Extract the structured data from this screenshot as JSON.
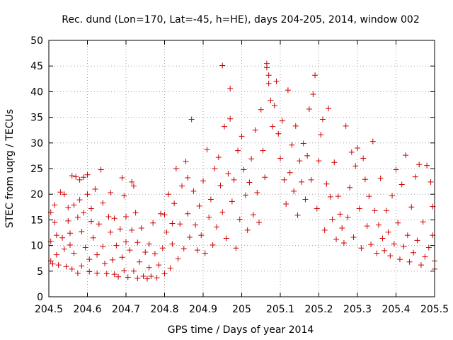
{
  "chart_data": {
    "type": "scatter",
    "title": "Rec. dund (Lon=170, Lat=-45, h=HE), days 204-205, 2014, window 002",
    "xlabel": "GPS time / Days of year 2014",
    "ylabel": "STEC from uqrg / TECUs",
    "xlim": [
      204.5,
      205.5
    ],
    "ylim": [
      0,
      50
    ],
    "xticks": [
      {
        "value": 204.5,
        "label": "204.5"
      },
      {
        "value": 204.6,
        "label": "204.6"
      },
      {
        "value": 204.7,
        "label": "204.7"
      },
      {
        "value": 204.8,
        "label": "204.8"
      },
      {
        "value": 204.9,
        "label": "204.9"
      },
      {
        "value": 205.0,
        "label": "205"
      },
      {
        "value": 205.1,
        "label": "205.1"
      },
      {
        "value": 205.2,
        "label": "205.2"
      },
      {
        "value": 205.3,
        "label": "205.3"
      },
      {
        "value": 205.4,
        "label": "205.4"
      },
      {
        "value": 205.5,
        "label": "205.5"
      }
    ],
    "yticks": [
      {
        "value": 0,
        "label": "0"
      },
      {
        "value": 5,
        "label": "5"
      },
      {
        "value": 10,
        "label": "10"
      },
      {
        "value": 15,
        "label": "15"
      },
      {
        "value": 20,
        "label": "20"
      },
      {
        "value": 25,
        "label": "25"
      },
      {
        "value": 30,
        "label": "30"
      },
      {
        "value": 35,
        "label": "35"
      },
      {
        "value": 40,
        "label": "40"
      },
      {
        "value": 45,
        "label": "45"
      },
      {
        "value": 50,
        "label": "50"
      }
    ],
    "grid": true,
    "marker": "+",
    "color": "#cc0000",
    "series": [
      {
        "name": "STEC",
        "points": [
          [
            204.505,
            16.5
          ],
          [
            204.505,
            10.8
          ],
          [
            204.505,
            7.0
          ],
          [
            204.51,
            6.4
          ],
          [
            204.515,
            17.9
          ],
          [
            204.515,
            14.5
          ],
          [
            204.52,
            12.0
          ],
          [
            204.52,
            8.2
          ],
          [
            204.525,
            6.2
          ],
          [
            204.53,
            20.4
          ],
          [
            204.535,
            11.5
          ],
          [
            204.54,
            20.0
          ],
          [
            204.54,
            9.3
          ],
          [
            204.545,
            5.9
          ],
          [
            204.55,
            17.4
          ],
          [
            204.55,
            14.8
          ],
          [
            204.555,
            12.4
          ],
          [
            204.555,
            10.1
          ],
          [
            204.56,
            23.6
          ],
          [
            204.56,
            5.4
          ],
          [
            204.565,
            17.9
          ],
          [
            204.565,
            8.5
          ],
          [
            204.57,
            23.4
          ],
          [
            204.575,
            15.5
          ],
          [
            204.575,
            4.6
          ],
          [
            204.58,
            22.8
          ],
          [
            204.58,
            18.9
          ],
          [
            204.585,
            12.7
          ],
          [
            204.585,
            6.0
          ],
          [
            204.59,
            23.3
          ],
          [
            204.59,
            16.4
          ],
          [
            204.595,
            9.6
          ],
          [
            204.6,
            23.8
          ],
          [
            204.6,
            20.0
          ],
          [
            204.605,
            7.3
          ],
          [
            204.605,
            4.9
          ],
          [
            204.61,
            17.2
          ],
          [
            204.61,
            14.7
          ],
          [
            204.615,
            11.5
          ],
          [
            204.62,
            21.0
          ],
          [
            204.625,
            8.2
          ],
          [
            204.625,
            4.6
          ],
          [
            204.63,
            14.2
          ],
          [
            204.635,
            24.8
          ],
          [
            204.64,
            18.3
          ],
          [
            204.64,
            9.8
          ],
          [
            204.645,
            6.5
          ],
          [
            204.65,
            4.5
          ],
          [
            204.655,
            15.6
          ],
          [
            204.66,
            12.6
          ],
          [
            204.66,
            20.3
          ],
          [
            204.665,
            7.2
          ],
          [
            204.67,
            15.3
          ],
          [
            204.67,
            4.4
          ],
          [
            204.675,
            10.0
          ],
          [
            204.68,
            3.9
          ],
          [
            204.685,
            13.2
          ],
          [
            204.69,
            23.2
          ],
          [
            204.69,
            7.7
          ],
          [
            204.695,
            19.7
          ],
          [
            204.695,
            5.1
          ],
          [
            204.7,
            15.6
          ],
          [
            204.7,
            10.7
          ],
          [
            204.705,
            3.8
          ],
          [
            204.71,
            9.1
          ],
          [
            204.715,
            22.4
          ],
          [
            204.715,
            13.0
          ],
          [
            204.72,
            21.6
          ],
          [
            204.72,
            5.0
          ],
          [
            204.725,
            16.4
          ],
          [
            204.73,
            3.6
          ],
          [
            204.73,
            10.6
          ],
          [
            204.735,
            6.8
          ],
          [
            204.74,
            13.4
          ],
          [
            204.745,
            4.0
          ],
          [
            204.75,
            8.7
          ],
          [
            204.755,
            3.5
          ],
          [
            204.76,
            10.3
          ],
          [
            204.76,
            5.7
          ],
          [
            204.765,
            4.0
          ],
          [
            204.77,
            14.4
          ],
          [
            204.775,
            8.4
          ],
          [
            204.78,
            3.7
          ],
          [
            204.785,
            6.2
          ],
          [
            204.79,
            16.2
          ],
          [
            204.795,
            9.5
          ],
          [
            204.8,
            4.5
          ],
          [
            204.8,
            16.0
          ],
          [
            204.805,
            12.6
          ],
          [
            204.81,
            20.0
          ],
          [
            204.815,
            5.6
          ],
          [
            204.82,
            14.3
          ],
          [
            204.82,
            10.3
          ],
          [
            204.825,
            18.2
          ],
          [
            204.83,
            25.0
          ],
          [
            204.835,
            7.4
          ],
          [
            204.84,
            14.2
          ],
          [
            204.845,
            21.6
          ],
          [
            204.85,
            9.4
          ],
          [
            204.855,
            26.4
          ],
          [
            204.86,
            16.2
          ],
          [
            204.86,
            23.2
          ],
          [
            204.865,
            11.6
          ],
          [
            204.87,
            34.6
          ],
          [
            204.875,
            20.6
          ],
          [
            204.88,
            14.0
          ],
          [
            204.885,
            9.1
          ],
          [
            204.89,
            17.7
          ],
          [
            204.895,
            12.0
          ],
          [
            204.9,
            22.6
          ],
          [
            204.905,
            8.5
          ],
          [
            204.91,
            28.7
          ],
          [
            204.915,
            15.5
          ],
          [
            204.92,
            19.0
          ],
          [
            204.925,
            10.1
          ],
          [
            204.93,
            25.0
          ],
          [
            204.935,
            13.6
          ],
          [
            204.94,
            27.2
          ],
          [
            204.945,
            21.7
          ],
          [
            204.95,
            45.1
          ],
          [
            204.95,
            16.5
          ],
          [
            204.955,
            33.2
          ],
          [
            204.96,
            11.4
          ],
          [
            204.965,
            24.0
          ],
          [
            204.97,
            40.6
          ],
          [
            204.97,
            34.7
          ],
          [
            204.975,
            18.6
          ],
          [
            204.98,
            22.8
          ],
          [
            204.985,
            9.5
          ],
          [
            204.99,
            28.5
          ],
          [
            204.995,
            15.1
          ],
          [
            205.0,
            31.3
          ],
          [
            205.005,
            24.8
          ],
          [
            205.01,
            19.8
          ],
          [
            205.015,
            13.0
          ],
          [
            205.02,
            22.3
          ],
          [
            205.025,
            26.9
          ],
          [
            205.03,
            16.0
          ],
          [
            205.035,
            32.5
          ],
          [
            205.04,
            20.3
          ],
          [
            205.045,
            14.5
          ],
          [
            205.05,
            36.5
          ],
          [
            205.055,
            28.5
          ],
          [
            205.06,
            23.3
          ],
          [
            205.065,
            45.5
          ],
          [
            205.065,
            44.7
          ],
          [
            205.07,
            43.2
          ],
          [
            205.07,
            41.6
          ],
          [
            205.075,
            38.3
          ],
          [
            205.08,
            33.2
          ],
          [
            205.085,
            37.3
          ],
          [
            205.09,
            42.0
          ],
          [
            205.095,
            31.8
          ],
          [
            205.1,
            27.0
          ],
          [
            205.105,
            34.3
          ],
          [
            205.11,
            22.8
          ],
          [
            205.115,
            18.1
          ],
          [
            205.12,
            40.3
          ],
          [
            205.125,
            24.2
          ],
          [
            205.13,
            29.6
          ],
          [
            205.135,
            20.6
          ],
          [
            205.14,
            33.3
          ],
          [
            205.145,
            15.9
          ],
          [
            205.15,
            26.5
          ],
          [
            205.155,
            22.4
          ],
          [
            205.16,
            29.9
          ],
          [
            205.165,
            19.0
          ],
          [
            205.17,
            27.5
          ],
          [
            205.175,
            36.6
          ],
          [
            205.18,
            22.8
          ],
          [
            205.185,
            39.5
          ],
          [
            205.19,
            43.2
          ],
          [
            205.195,
            17.2
          ],
          [
            205.2,
            26.5
          ],
          [
            205.205,
            31.6
          ],
          [
            205.21,
            34.6
          ],
          [
            205.215,
            13.0
          ],
          [
            205.22,
            22.0
          ],
          [
            205.225,
            36.7
          ],
          [
            205.23,
            19.5
          ],
          [
            205.235,
            15.1
          ],
          [
            205.24,
            26.2
          ],
          [
            205.245,
            11.2
          ],
          [
            205.25,
            19.6
          ],
          [
            205.255,
            16.1
          ],
          [
            205.26,
            13.4
          ],
          [
            205.265,
            10.5
          ],
          [
            205.27,
            33.3
          ],
          [
            205.275,
            15.5
          ],
          [
            205.28,
            21.3
          ],
          [
            205.285,
            28.2
          ],
          [
            205.29,
            11.6
          ],
          [
            205.295,
            25.5
          ],
          [
            205.3,
            29.0
          ],
          [
            205.305,
            17.2
          ],
          [
            205.31,
            9.5
          ],
          [
            205.315,
            27.0
          ],
          [
            205.32,
            22.9
          ],
          [
            205.325,
            13.8
          ],
          [
            205.33,
            19.6
          ],
          [
            205.335,
            10.2
          ],
          [
            205.34,
            30.3
          ],
          [
            205.345,
            16.8
          ],
          [
            205.35,
            8.5
          ],
          [
            205.355,
            14.0
          ],
          [
            205.36,
            23.1
          ],
          [
            205.365,
            11.4
          ],
          [
            205.37,
            9.0
          ],
          [
            205.375,
            16.8
          ],
          [
            205.38,
            12.6
          ],
          [
            205.385,
            8.0
          ],
          [
            205.39,
            19.7
          ],
          [
            205.395,
            10.3
          ],
          [
            205.4,
            24.8
          ],
          [
            205.405,
            14.4
          ],
          [
            205.41,
            7.3
          ],
          [
            205.415,
            21.9
          ],
          [
            205.42,
            9.8
          ],
          [
            205.425,
            27.6
          ],
          [
            205.43,
            12.0
          ],
          [
            205.435,
            6.8
          ],
          [
            205.44,
            17.5
          ],
          [
            205.445,
            8.6
          ],
          [
            205.45,
            23.4
          ],
          [
            205.455,
            11.0
          ],
          [
            205.46,
            25.8
          ],
          [
            205.465,
            6.2
          ],
          [
            205.47,
            14.6
          ],
          [
            205.475,
            7.8
          ],
          [
            205.48,
            25.6
          ],
          [
            205.485,
            9.6
          ],
          [
            205.49,
            22.4
          ],
          [
            205.495,
            17.6
          ],
          [
            205.495,
            12.0
          ],
          [
            205.5,
            7.0
          ],
          [
            205.5,
            5.4
          ]
        ]
      }
    ]
  }
}
